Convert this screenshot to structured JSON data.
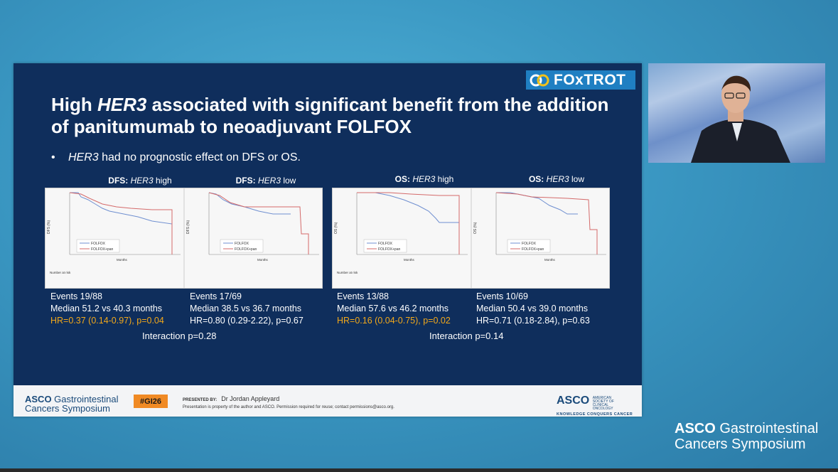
{
  "slide": {
    "logo_text": "FOxTROT",
    "title_pre": "High ",
    "title_italic": "HER3",
    "title_post": " associated with significant benefit from the addition of panitumumab to neoadjuvant FOLFOX",
    "bullet_italic": "HER3",
    "bullet_rest": " had no prognostic effect on DFS or OS.",
    "plots": [
      {
        "label_bold": "DFS:",
        "label_italic": "HER3",
        "label_rest": " high",
        "events": "Events 19/88",
        "median": "Median 51.2 vs 40.3 months",
        "hr": "HR=0.37 (0.14-0.97), p=0.04",
        "hr_significant": true,
        "ylabel": "DFS (%)"
      },
      {
        "label_bold": "DFS:",
        "label_italic": "HER3",
        "label_rest": " low",
        "events": "Events 17/69",
        "median": "Median 38.5 vs 36.7 months",
        "hr": "HR=0.80 (0.29-2.22), p=0.67",
        "hr_significant": false,
        "ylabel": "DFS (%)"
      },
      {
        "label_bold": "OS:",
        "label_italic": "HER3",
        "label_rest": " high",
        "events": "Events 13/88",
        "median": "Median 57.6 vs 46.2 months",
        "hr": "HR=0.16 (0.04-0.75), p=0.02",
        "hr_significant": true,
        "ylabel": "OS (%)"
      },
      {
        "label_bold": "OS:",
        "label_italic": "HER3",
        "label_rest": " low",
        "events": "Events 10/69",
        "median": "Median 50.4 vs 39.0 months",
        "hr": "HR=0.71 (0.18-2.84), p=0.63",
        "hr_significant": false,
        "ylabel": "OS (%)"
      }
    ],
    "interaction_dfs": "Interaction p=0.28",
    "interaction_os": "Interaction p=0.14",
    "legend_a": "FOLFOX",
    "legend_b": "FOLFOX+pan",
    "x_axis_label": "Months",
    "risk_label": "Number at risk",
    "colors": {
      "folfox": "#6f8fd0",
      "folfox_pan": "#d46a6a",
      "hr_sig": "#f2a81a",
      "slide_bg": "#0f2e5c"
    }
  },
  "footer": {
    "asco_left_1": "ASCO",
    "asco_left_1b": " Gastrointestinal",
    "asco_left_2": "Cancers Symposium",
    "badge": "#GI26",
    "presented_label": "PRESENTED BY:",
    "presenter": "Dr Jordan Appleyard",
    "disclaimer": "Presentation is property of the author and ASCO. Permission required for reuse; contact permissions@asco.org.",
    "asco_right": "ASCO",
    "asco_right_small": "AMERICAN SOCIETY OF CLINICAL ONCOLOGY",
    "asco_right_tag": "KNOWLEDGE CONQUERS CANCER"
  },
  "brand": {
    "line1_bold": "ASCO",
    "line1_rest": " Gastrointestinal",
    "line2": "Cancers Symposium"
  }
}
